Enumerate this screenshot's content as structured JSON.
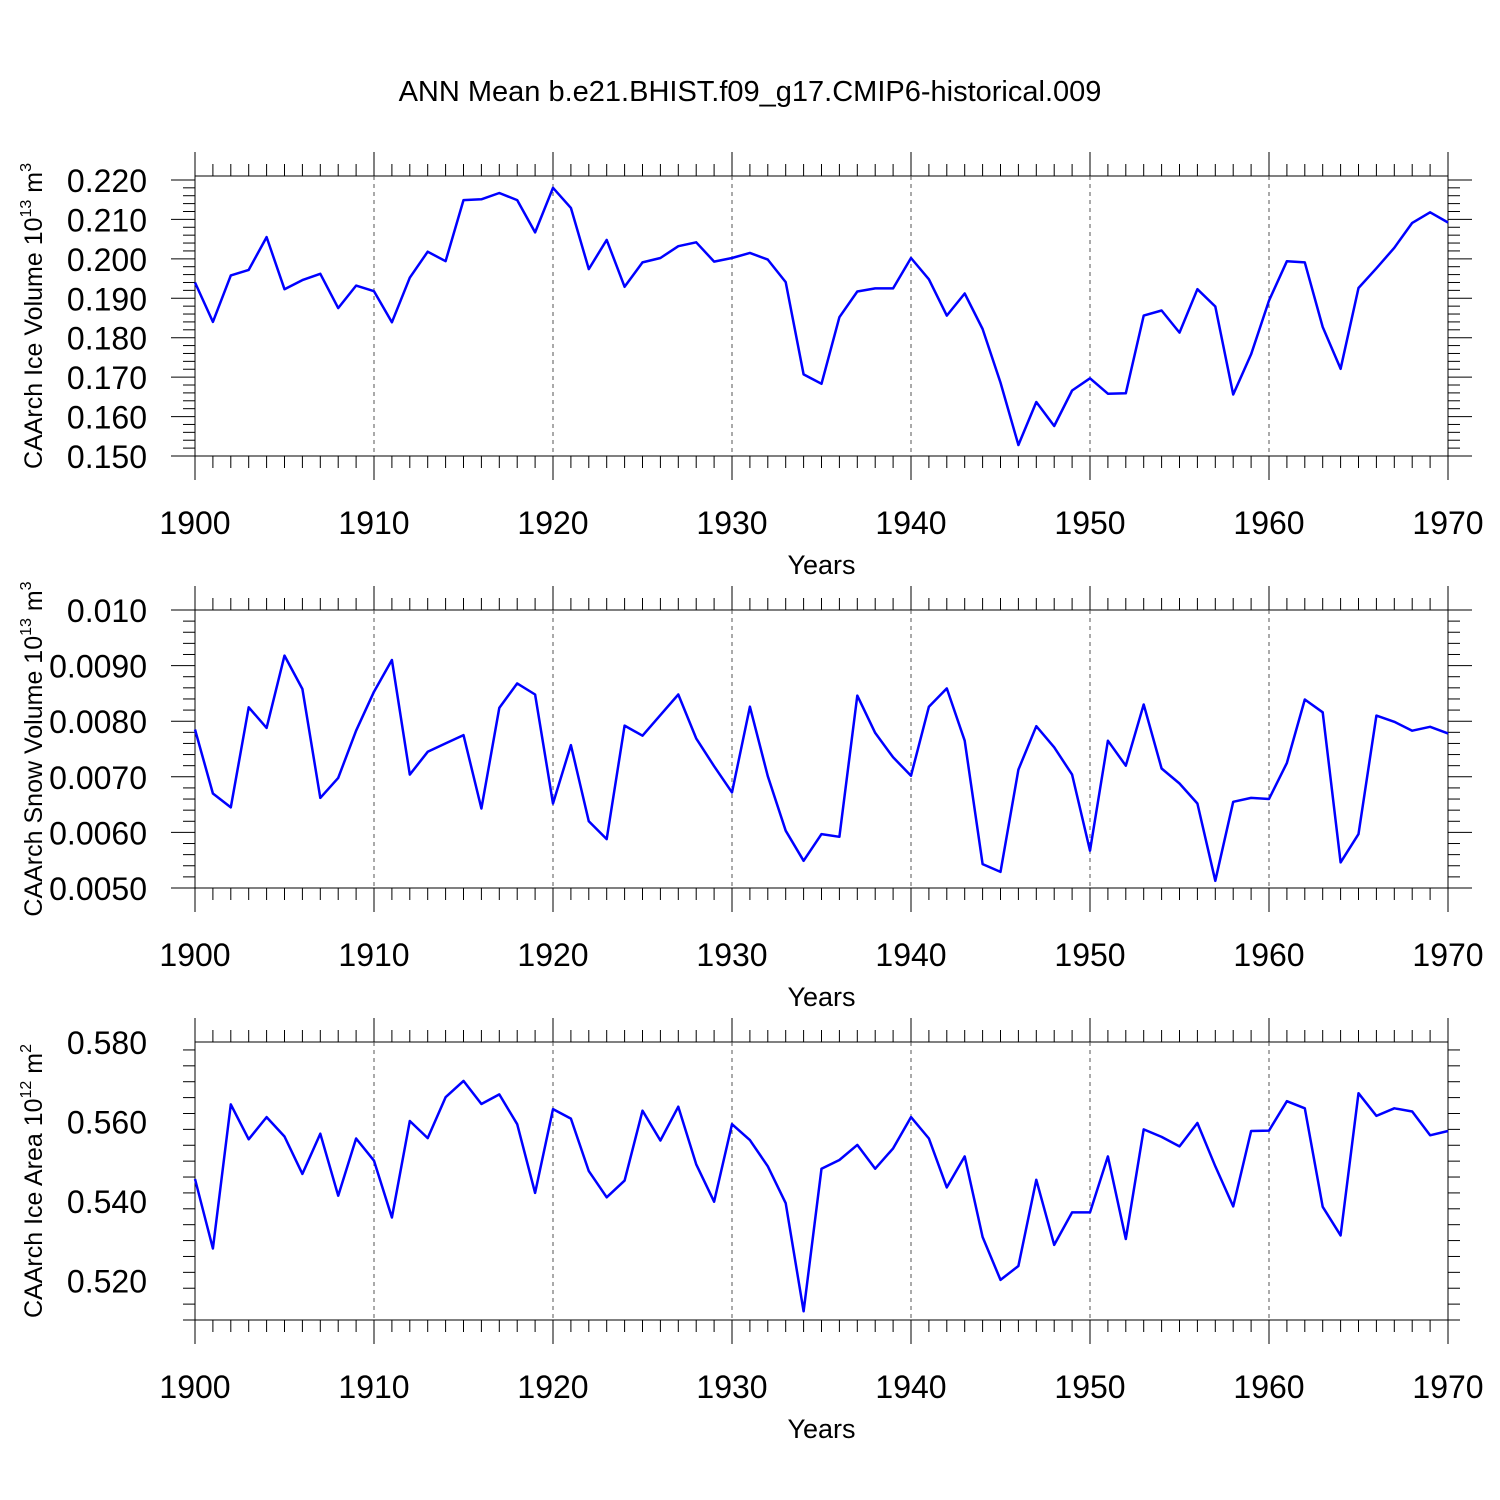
{
  "title": "ANN Mean b.e21.BHIST.f09_g17.CMIP6-historical.009",
  "line_color": "#0000ff",
  "chart_data": [
    {
      "type": "line",
      "ylabel_main": "CAArch Ice Volume 10",
      "ylabel_sup": "13",
      "ylabel_unit": " m",
      "ylabel_unit_sup": "3",
      "xlabel": "Years",
      "xlim": [
        1900,
        1970
      ],
      "ylim": [
        0.15,
        0.221
      ],
      "xticks": [
        "1900",
        "1910",
        "1920",
        "1930",
        "1940",
        "1950",
        "1960",
        "1970"
      ],
      "yticks": [
        "0.150",
        "0.160",
        "0.170",
        "0.180",
        "0.190",
        "0.200",
        "0.210",
        "0.220"
      ],
      "grid": "vertical dashed at decades",
      "series": [
        {
          "x_start": 1900,
          "values": [
            0.194,
            0.184,
            0.1958,
            0.1972,
            0.2055,
            0.1923,
            0.1946,
            0.1962,
            0.1875,
            0.1932,
            0.1918,
            0.1839,
            0.1952,
            0.2018,
            0.1994,
            0.2149,
            0.2151,
            0.2167,
            0.2149,
            0.2067,
            0.218,
            0.2129,
            0.1974,
            0.2048,
            0.1929,
            0.1991,
            0.2002,
            0.2032,
            0.2042,
            0.1993,
            0.2002,
            0.2015,
            0.1998,
            0.1941,
            0.1707,
            0.1683,
            0.1852,
            0.1917,
            0.1925,
            0.1925,
            0.2002,
            0.1948,
            0.1856,
            0.1912,
            0.1822,
            0.1686,
            0.1528,
            0.1637,
            0.1576,
            0.1666,
            0.1697,
            0.1658,
            0.1659,
            0.1856,
            0.1869,
            0.1813,
            0.1923,
            0.1879,
            0.1656,
            0.1758,
            0.1894,
            0.1994,
            0.1991,
            0.1827,
            0.1721,
            0.1926,
            0.1976,
            0.2028,
            0.2091,
            0.2118,
            0.2092
          ]
        }
      ]
    },
    {
      "type": "line",
      "ylabel_main": "CAArch Snow Volume 10",
      "ylabel_sup": "13",
      "ylabel_unit": " m",
      "ylabel_unit_sup": "3",
      "xlabel": "Years",
      "xlim": [
        1900,
        1970
      ],
      "ylim": [
        0.005,
        0.01
      ],
      "xticks": [
        "1900",
        "1910",
        "1920",
        "1930",
        "1940",
        "1950",
        "1960",
        "1970"
      ],
      "yticks": [
        "0.0050",
        "0.0060",
        "0.0070",
        "0.0080",
        "0.0090",
        "0.010"
      ],
      "grid": "vertical dashed at decades",
      "series": [
        {
          "x_start": 1900,
          "values": [
            0.00785,
            0.0067,
            0.00645,
            0.00825,
            0.00788,
            0.00918,
            0.00858,
            0.00662,
            0.00698,
            0.00783,
            0.00853,
            0.0091,
            0.00704,
            0.00745,
            0.0076,
            0.00775,
            0.00643,
            0.00824,
            0.00868,
            0.00848,
            0.00652,
            0.00757,
            0.0062,
            0.00588,
            0.00792,
            0.00774,
            0.00811,
            0.00848,
            0.00769,
            0.00719,
            0.00672,
            0.00826,
            0.00701,
            0.00603,
            0.00549,
            0.00597,
            0.00592,
            0.00846,
            0.00779,
            0.00735,
            0.00702,
            0.00826,
            0.00859,
            0.00765,
            0.00543,
            0.00529,
            0.00713,
            0.00791,
            0.00753,
            0.00704,
            0.00567,
            0.00765,
            0.0072,
            0.0083,
            0.00715,
            0.00688,
            0.00652,
            0.00513,
            0.00655,
            0.00662,
            0.0066,
            0.00725,
            0.00839,
            0.00816,
            0.00546,
            0.00597,
            0.0081,
            0.00799,
            0.00783,
            0.0079,
            0.00778
          ]
        }
      ]
    },
    {
      "type": "line",
      "ylabel_main": "CAArch Ice Area 10",
      "ylabel_sup": "12",
      "ylabel_unit": " m",
      "ylabel_unit_sup": "2",
      "xlabel": "Years",
      "xlim": [
        1900,
        1970
      ],
      "ylim": [
        0.51,
        0.58
      ],
      "xticks": [
        "1900",
        "1910",
        "1920",
        "1930",
        "1940",
        "1950",
        "1960",
        "1970"
      ],
      "yticks": [
        "0.520",
        "0.540",
        "0.560",
        "0.580"
      ],
      "grid": "vertical dashed at decades",
      "series": [
        {
          "x_start": 1900,
          "values": [
            0.5455,
            0.528,
            0.5643,
            0.5555,
            0.5611,
            0.5562,
            0.5468,
            0.5569,
            0.5413,
            0.5557,
            0.5501,
            0.5358,
            0.5601,
            0.5558,
            0.5661,
            0.5702,
            0.5644,
            0.5668,
            0.5593,
            0.542,
            0.5631,
            0.5607,
            0.5475,
            0.5409,
            0.5451,
            0.5627,
            0.5552,
            0.5637,
            0.5492,
            0.5398,
            0.5593,
            0.5553,
            0.5487,
            0.5394,
            0.5122,
            0.5481,
            0.5503,
            0.5541,
            0.5481,
            0.5532,
            0.5611,
            0.5557,
            0.5434,
            0.5512,
            0.5309,
            0.5201,
            0.5236,
            0.5453,
            0.5289,
            0.5371,
            0.5371,
            0.5512,
            0.5304,
            0.558,
            0.5561,
            0.5537,
            0.5596,
            0.5487,
            0.5386,
            0.5576,
            0.5577,
            0.5651,
            0.5633,
            0.5385,
            0.5313,
            0.5671,
            0.5614,
            0.5633,
            0.5625,
            0.5565,
            0.5576
          ]
        }
      ]
    }
  ]
}
